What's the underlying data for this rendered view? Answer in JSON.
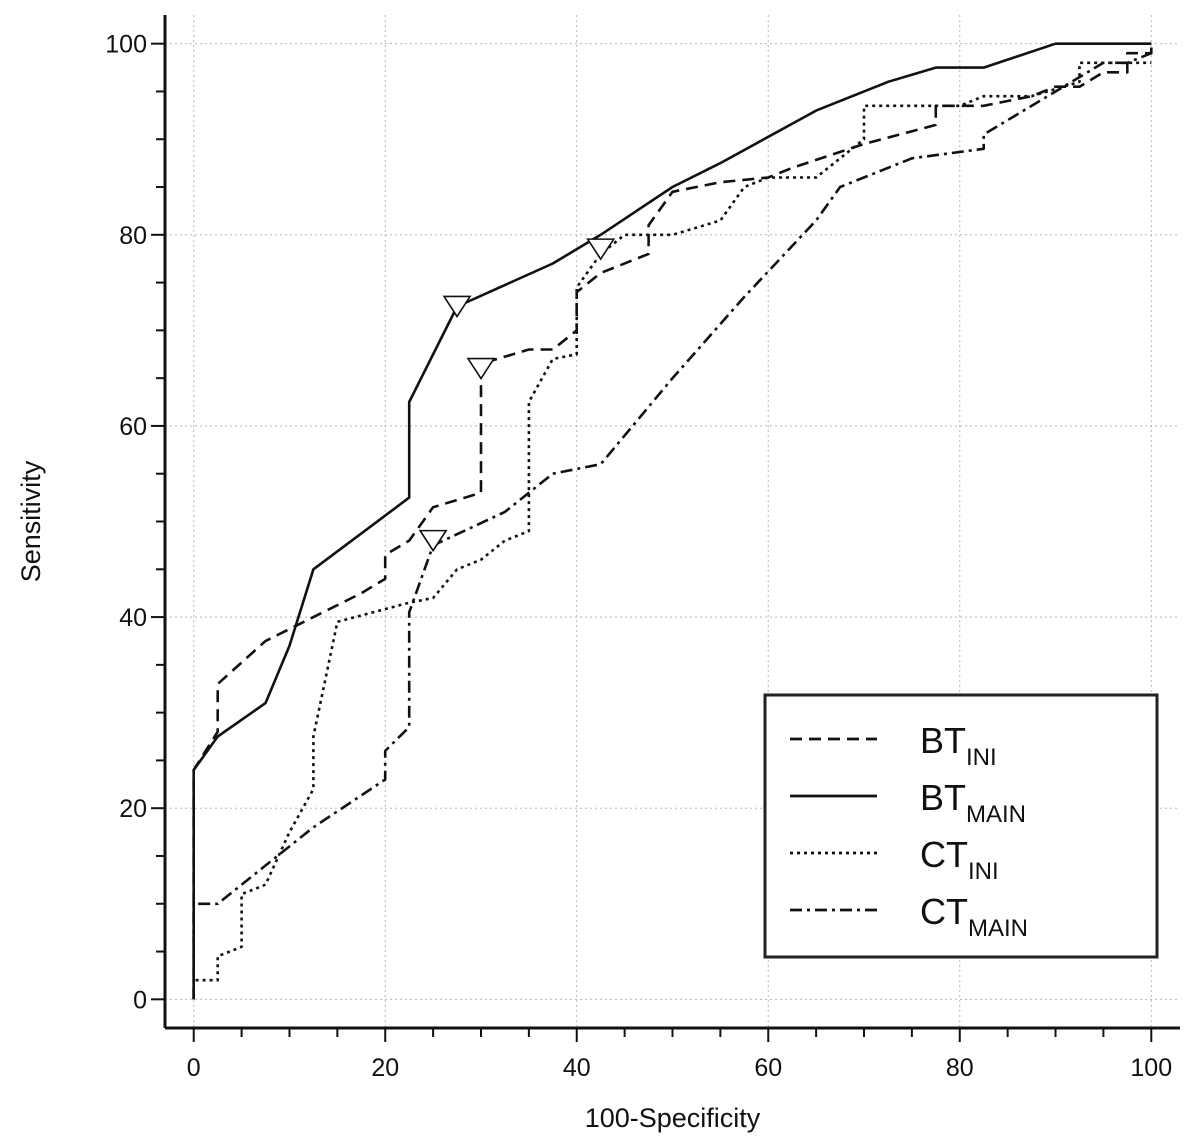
{
  "chart_data": {
    "type": "line",
    "title": "",
    "xlabel": "100-Specificity",
    "ylabel": "Sensitivity",
    "xlim": [
      -3,
      103
    ],
    "ylim": [
      -3,
      103
    ],
    "xticks": [
      0,
      20,
      40,
      60,
      80,
      100
    ],
    "yticks": [
      0,
      20,
      40,
      60,
      80,
      100
    ],
    "grid": true,
    "legend_position": "bottom-right",
    "series": [
      {
        "name": "BT",
        "sub": "INI",
        "dash": "12,7",
        "marker": [
          30,
          66
        ],
        "points": [
          [
            0,
            0
          ],
          [
            0,
            24
          ],
          [
            2.5,
            28
          ],
          [
            2.5,
            33
          ],
          [
            7.5,
            37.5
          ],
          [
            12.5,
            40
          ],
          [
            17.5,
            42.5
          ],
          [
            20,
            44
          ],
          [
            20,
            46.5
          ],
          [
            22.5,
            48
          ],
          [
            25,
            51.5
          ],
          [
            30,
            53
          ],
          [
            30,
            66.5
          ],
          [
            35,
            68
          ],
          [
            37.5,
            68
          ],
          [
            40,
            70
          ],
          [
            40,
            74
          ],
          [
            42.5,
            76
          ],
          [
            47.5,
            78
          ],
          [
            47.5,
            81
          ],
          [
            50,
            84.5
          ],
          [
            55,
            85.5
          ],
          [
            60,
            86
          ],
          [
            62.5,
            87
          ],
          [
            70,
            89.5
          ],
          [
            77.5,
            91.5
          ],
          [
            77.5,
            93.5
          ],
          [
            82.5,
            93.5
          ],
          [
            87.5,
            94.5
          ],
          [
            90,
            95.5
          ],
          [
            92.5,
            95.5
          ],
          [
            95,
            97
          ],
          [
            97.5,
            97
          ],
          [
            97.5,
            99
          ],
          [
            100,
            99
          ],
          [
            100,
            100
          ]
        ]
      },
      {
        "name": "BT",
        "sub": "MAIN",
        "dash": "",
        "marker": [
          27.5,
          72.5
        ],
        "points": [
          [
            0,
            0
          ],
          [
            0,
            24
          ],
          [
            2.5,
            27.5
          ],
          [
            7.5,
            31
          ],
          [
            10,
            37
          ],
          [
            12.5,
            45
          ],
          [
            22.5,
            52.5
          ],
          [
            22.5,
            62.5
          ],
          [
            27.5,
            72.5
          ],
          [
            37.5,
            77
          ],
          [
            42.5,
            80
          ],
          [
            50,
            85
          ],
          [
            55,
            87.5
          ],
          [
            65,
            93
          ],
          [
            72.5,
            96
          ],
          [
            77.5,
            97.5
          ],
          [
            82.5,
            97.5
          ],
          [
            90,
            100
          ],
          [
            100,
            100
          ]
        ]
      },
      {
        "name": "CT",
        "sub": "INI",
        "dash": "3,4",
        "marker": [
          42.5,
          78.5
        ],
        "points": [
          [
            0,
            0
          ],
          [
            0,
            2
          ],
          [
            2.5,
            2
          ],
          [
            2.5,
            4.5
          ],
          [
            5,
            5.5
          ],
          [
            5,
            11
          ],
          [
            7.5,
            12
          ],
          [
            10,
            17.5
          ],
          [
            12.5,
            22
          ],
          [
            12.5,
            27.5
          ],
          [
            15,
            39.5
          ],
          [
            22.5,
            41.5
          ],
          [
            25,
            42
          ],
          [
            27.5,
            45
          ],
          [
            30,
            46
          ],
          [
            32.5,
            48
          ],
          [
            35,
            49
          ],
          [
            35,
            62.5
          ],
          [
            37.5,
            67
          ],
          [
            40,
            67.5
          ],
          [
            40,
            74.5
          ],
          [
            42.5,
            78
          ],
          [
            45,
            80
          ],
          [
            50,
            80
          ],
          [
            55,
            81.5
          ],
          [
            57.5,
            85
          ],
          [
            60,
            86
          ],
          [
            65,
            86
          ],
          [
            70,
            90
          ],
          [
            70,
            93.5
          ],
          [
            75,
            93.5
          ],
          [
            80,
            93.5
          ],
          [
            82.5,
            94.5
          ],
          [
            87.5,
            94.5
          ],
          [
            92.5,
            96
          ],
          [
            92.5,
            98
          ],
          [
            95,
            98
          ],
          [
            100,
            98
          ]
        ]
      },
      {
        "name": "CT",
        "sub": "MAIN",
        "dash": "12,5,3,5",
        "marker": [
          25,
          48
        ],
        "points": [
          [
            0,
            0
          ],
          [
            0,
            10
          ],
          [
            2.5,
            10
          ],
          [
            7.5,
            14
          ],
          [
            12.5,
            18
          ],
          [
            20,
            23
          ],
          [
            20,
            26
          ],
          [
            22.5,
            28.5
          ],
          [
            22.5,
            40.5
          ],
          [
            25,
            47.5
          ],
          [
            32.5,
            51
          ],
          [
            37.5,
            55
          ],
          [
            42.5,
            56
          ],
          [
            50,
            65
          ],
          [
            57.5,
            73.5
          ],
          [
            65,
            81.5
          ],
          [
            67.5,
            85
          ],
          [
            75,
            88
          ],
          [
            82.5,
            89
          ],
          [
            82.5,
            90.5
          ],
          [
            90,
            95
          ],
          [
            92.5,
            96.5
          ],
          [
            95,
            98
          ],
          [
            97.5,
            98
          ],
          [
            100,
            99
          ]
        ]
      }
    ]
  }
}
